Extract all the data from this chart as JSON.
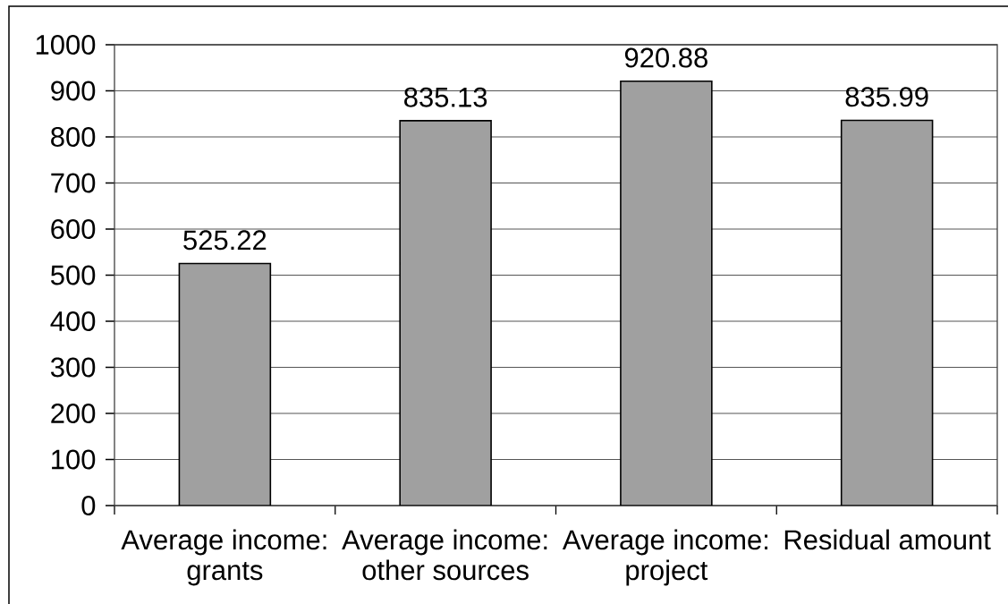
{
  "chart_data": {
    "type": "bar",
    "categories": [
      "Average income: grants",
      "Average income: other sources",
      "Average income: project",
      "Residual amount"
    ],
    "values": [
      525.22,
      835.13,
      920.88,
      835.99
    ],
    "color": "#a0a0a0",
    "ylim": [
      0,
      1000
    ],
    "yticks": [
      0,
      100,
      200,
      300,
      400,
      500,
      600,
      700,
      800,
      900,
      1000
    ],
    "grid": "y",
    "data_labels": true
  }
}
